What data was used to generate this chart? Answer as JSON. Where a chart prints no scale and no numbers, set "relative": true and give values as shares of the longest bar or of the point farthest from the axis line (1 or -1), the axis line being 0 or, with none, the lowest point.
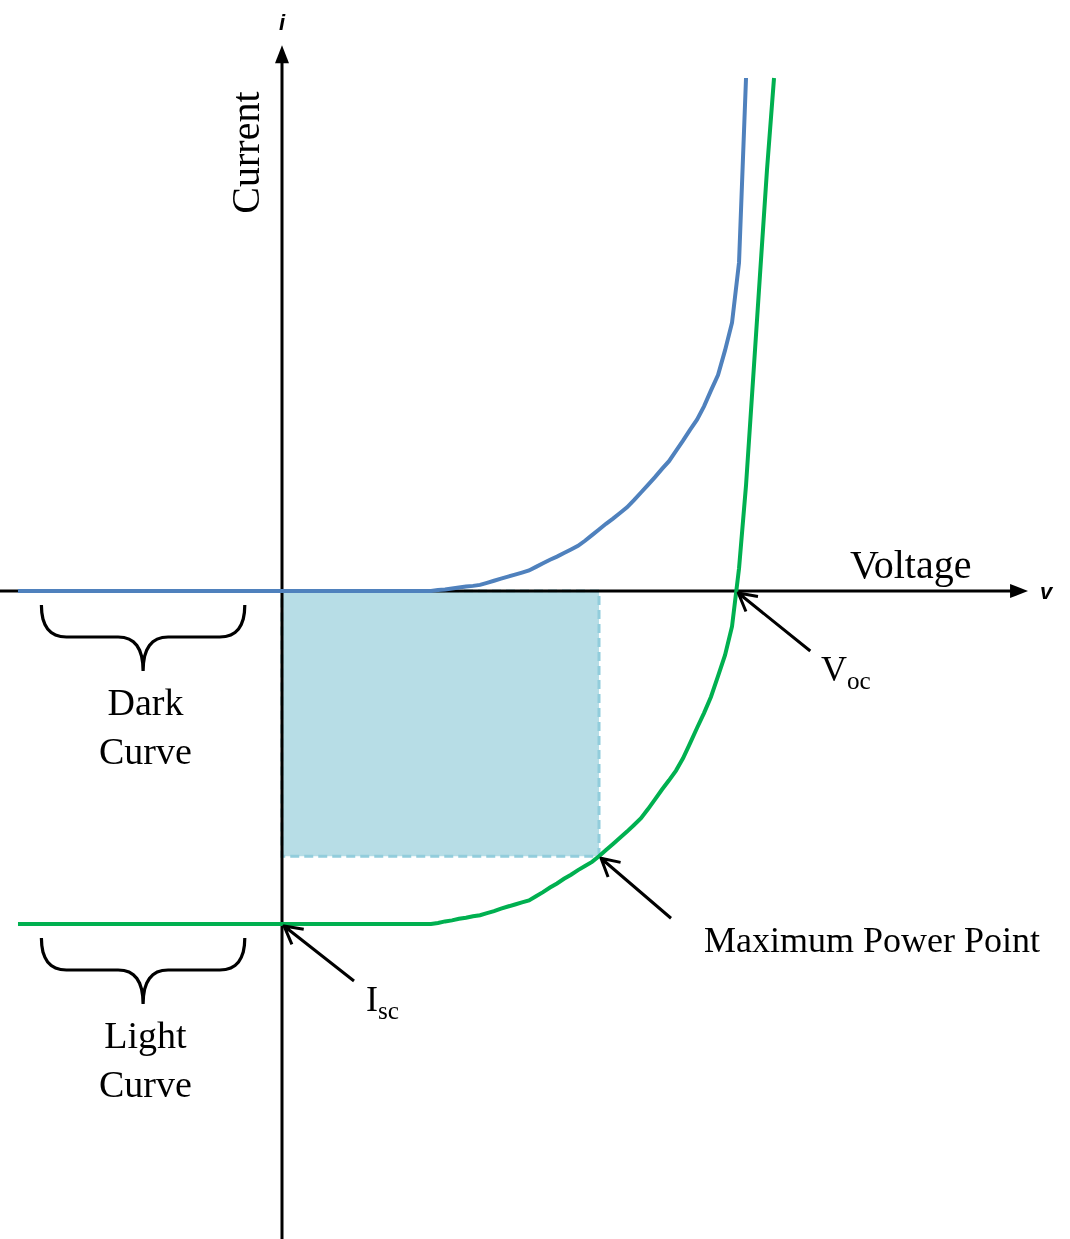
{
  "chart_data": {
    "type": "line",
    "relative": true,
    "xlabel": "Voltage",
    "ylabel": "Current",
    "legend": false,
    "grid": false,
    "categories": [
      null,
      null,
      null,
      null,
      null,
      null,
      null,
      null,
      null,
      null,
      null,
      null,
      null,
      null,
      null,
      null,
      null,
      null,
      null,
      null,
      null,
      null,
      null,
      null,
      null,
      null,
      null,
      null,
      null,
      null,
      null,
      null,
      null,
      null,
      null,
      null,
      null,
      null,
      null,
      null,
      null,
      null,
      null,
      null,
      null,
      null,
      null,
      null,
      null,
      null,
      null,
      null,
      null,
      null,
      null,
      null,
      null,
      null,
      null,
      null,
      null,
      null,
      null,
      null,
      null,
      null,
      null,
      null,
      null,
      null,
      null,
      null,
      null,
      null,
      null,
      null,
      null,
      null,
      null,
      null,
      null,
      null,
      null,
      null,
      null,
      null,
      null,
      null,
      null,
      null,
      null,
      null,
      null,
      null,
      null,
      null,
      null,
      null,
      null,
      null,
      null,
      null,
      null,
      null,
      null,
      null,
      null,
      null,
      null
    ],
    "series": [
      {
        "name": "Dark Curve",
        "color": "#4f81bd",
        "values": [
          0,
          0,
          0,
          0,
          0,
          0,
          0,
          0,
          0,
          0,
          0,
          0,
          0,
          0,
          0,
          0,
          0,
          0,
          0,
          0,
          0,
          0,
          0,
          0,
          0,
          0,
          0,
          0,
          0,
          0,
          0,
          0,
          0,
          0,
          0,
          0,
          0,
          0,
          0,
          0,
          0,
          0,
          0,
          0,
          0,
          0,
          0,
          0,
          0,
          0,
          0,
          0,
          0,
          0,
          0,
          0,
          0,
          0,
          0,
          0,
          0.002,
          0.003,
          0.005,
          0.007,
          0.009,
          0.01,
          0.012,
          0.016,
          0.02,
          0.024,
          0.028,
          0.032,
          0.036,
          0.04,
          0.047,
          0.054,
          0.061,
          0.067,
          0.074,
          0.081,
          0.088,
          0.098,
          0.109,
          0.12,
          0.131,
          0.141,
          0.152,
          0.163,
          0.177,
          0.192,
          0.207,
          0.222,
          0.238,
          0.253,
          0.273,
          0.293,
          0.314,
          0.334,
          0.36,
          0.391,
          0.421,
          0.469,
          0.523,
          0.64,
          1.0,
          null,
          null,
          null,
          null
        ]
      },
      {
        "name": "Light Curve",
        "color": "#00b050",
        "values": [
          -0.649,
          -0.649,
          -0.649,
          -0.649,
          -0.649,
          -0.649,
          -0.649,
          -0.649,
          -0.649,
          -0.649,
          -0.649,
          -0.649,
          -0.649,
          -0.649,
          -0.649,
          -0.649,
          -0.649,
          -0.649,
          -0.649,
          -0.649,
          -0.649,
          -0.649,
          -0.649,
          -0.649,
          -0.649,
          -0.649,
          -0.649,
          -0.649,
          -0.649,
          -0.649,
          -0.649,
          -0.649,
          -0.649,
          -0.649,
          -0.649,
          -0.649,
          -0.649,
          -0.649,
          -0.649,
          -0.649,
          -0.649,
          -0.649,
          -0.649,
          -0.649,
          -0.649,
          -0.649,
          -0.649,
          -0.649,
          -0.649,
          -0.649,
          -0.649,
          -0.649,
          -0.649,
          -0.649,
          -0.649,
          -0.649,
          -0.649,
          -0.649,
          -0.649,
          -0.649,
          -0.647,
          -0.644,
          -0.642,
          -0.639,
          -0.637,
          -0.634,
          -0.632,
          -0.628,
          -0.624,
          -0.619,
          -0.615,
          -0.611,
          -0.607,
          -0.603,
          -0.595,
          -0.587,
          -0.578,
          -0.57,
          -0.561,
          -0.553,
          -0.544,
          -0.536,
          -0.528,
          -0.517,
          -0.505,
          -0.493,
          -0.481,
          -0.469,
          -0.456,
          -0.443,
          -0.425,
          -0.406,
          -0.387,
          -0.369,
          -0.35,
          -0.326,
          -0.297,
          -0.267,
          -0.238,
          -0.206,
          -0.166,
          -0.125,
          -0.069,
          0.044,
          0.206,
          0.411,
          0.617,
          0.822,
          1.0
        ]
      }
    ],
    "annotations": [
      "i",
      "v",
      "V$_{oc}$",
      "Maximum Power Point",
      "I$_{sc}$"
    ]
  }
}
